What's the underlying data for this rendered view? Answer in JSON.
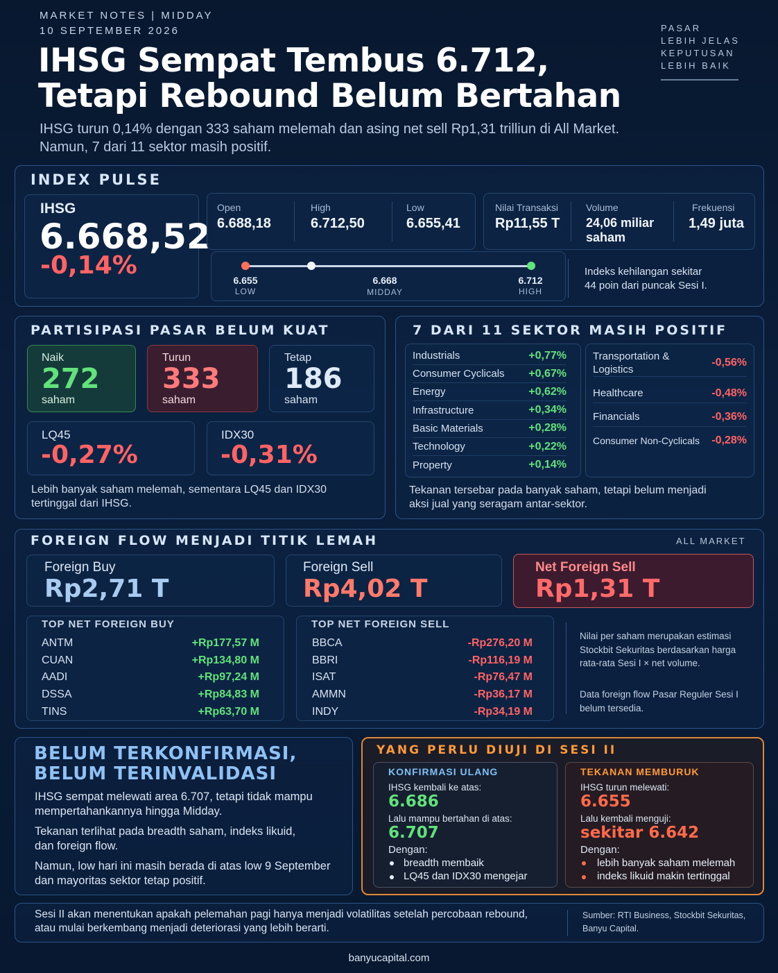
{
  "header": {
    "kicker": "MARKET NOTES | MIDDAY",
    "date": "10 SEPTEMBER 2026",
    "title_line1": "IHSG Sempat Tembus 6.712,",
    "title_line2": "Tetapi Rebound Belum Bertahan",
    "subtitle_line1": "IHSG turun 0,14% dengan 333 saham melemah dan asing net sell Rp1,31 trilliun di All Market.",
    "subtitle_line2": "Namun, 7 dari 11 sektor masih positif.",
    "tagline": [
      "PASAR",
      "LEBIH JELAS",
      "KEPUTUSAN",
      "LEBIH BAIK"
    ]
  },
  "index_pulse": {
    "title": "INDEX PULSE",
    "name": "IHSG",
    "value": "6.668,52",
    "change": "-0,14%",
    "stats": [
      {
        "label": "Open",
        "value": "6.688,18"
      },
      {
        "label": "High",
        "value": "6.712,50"
      },
      {
        "label": "Low",
        "value": "6.655,41"
      }
    ],
    "trade": [
      {
        "label": "Nilai Transaksi",
        "value": "Rp11,55 T"
      },
      {
        "label": "Volume",
        "value": "24,06 miliar saham"
      },
      {
        "label": "Frekuensi",
        "value": "1,49 juta"
      }
    ],
    "range": {
      "low_value": "6.655",
      "low_label": "LOW",
      "mid_value": "6.668",
      "mid_label": "MIDDAY",
      "high_value": "6.712",
      "high_label": "HIGH",
      "low_num": 6655.41,
      "mid_num": 6668.52,
      "high_num": 6712.5
    },
    "note_line1": "Indeks kehilangan sekitar",
    "note_line2": "44 poin dari puncak Sesi I."
  },
  "participation": {
    "title": "PARTISIPASI PASAR BELUM KUAT",
    "naik": {
      "label": "Naik",
      "value": "272",
      "unit": "saham"
    },
    "turun": {
      "label": "Turun",
      "value": "333",
      "unit": "saham"
    },
    "tetap": {
      "label": "Tetap",
      "value": "186",
      "unit": "saham"
    },
    "lq45": {
      "label": "LQ45",
      "value": "-0,27%"
    },
    "idx30": {
      "label": "IDX30",
      "value": "-0,31%"
    },
    "note_line1": "Lebih banyak saham melemah, sementara LQ45 dan IDX30",
    "note_line2": "tertinggal dari IHSG."
  },
  "sectors": {
    "title": "7 DARI 11 SEKTOR MASIH POSITIF",
    "positive": [
      {
        "name": "Industrials",
        "value": "+0,77%"
      },
      {
        "name": "Consumer Cyclicals",
        "value": "+0,67%"
      },
      {
        "name": "Energy",
        "value": "+0,62%"
      },
      {
        "name": "Infrastructure",
        "value": "+0,34%"
      },
      {
        "name": "Basic Materials",
        "value": "+0,28%"
      },
      {
        "name": "Technology",
        "value": "+0,22%"
      },
      {
        "name": "Property",
        "value": "+0,14%"
      }
    ],
    "negative": [
      {
        "name": "Transportation & Logistics",
        "value": "-0,56%"
      },
      {
        "name": "Healthcare",
        "value": "-0,48%"
      },
      {
        "name": "Financials",
        "value": "-0,36%"
      },
      {
        "name": "Consumer Non-Cyclicals",
        "value": "-0,28%"
      }
    ],
    "note_line1": "Tekanan tersebar pada banyak saham, tetapi belum menjadi",
    "note_line2": "aksi jual yang seragam antar-sektor."
  },
  "foreign": {
    "title": "FOREIGN FLOW MENJADI TITIK LEMAH",
    "scope": "ALL MARKET",
    "buy": {
      "label": "Foreign Buy",
      "value": "Rp2,71 T"
    },
    "sell": {
      "label": "Foreign Sell",
      "value": "Rp4,02 T"
    },
    "net": {
      "label": "Net Foreign Sell",
      "value": "Rp1,31 T"
    },
    "top_buy_title": "TOP NET FOREIGN BUY",
    "top_buy": [
      {
        "code": "ANTM",
        "value": "+Rp177,57 M"
      },
      {
        "code": "CUAN",
        "value": "+Rp134,80 M"
      },
      {
        "code": "AADI",
        "value": "+Rp97,24 M"
      },
      {
        "code": "DSSA",
        "value": "+Rp84,83 M"
      },
      {
        "code": "TINS",
        "value": "+Rp63,70 M"
      }
    ],
    "top_sell_title": "TOP NET FOREIGN SELL",
    "top_sell": [
      {
        "code": "BBCA",
        "value": "-Rp276,20 M"
      },
      {
        "code": "BBRI",
        "value": "-Rp116,19 M"
      },
      {
        "code": "ISAT",
        "value": "-Rp76,47 M"
      },
      {
        "code": "AMMN",
        "value": "-Rp36,17 M"
      },
      {
        "code": "INDY",
        "value": "-Rp34,19 M"
      }
    ],
    "note1": [
      "Nilai per saham merupakan estimasi",
      "Stockbit Sekuritas berdasarkan harga",
      "rata-rata Sesi I × net volume."
    ],
    "note2": [
      "Data foreign flow Pasar Reguler Sesi I",
      "belum tersedia."
    ]
  },
  "confirm": {
    "title_line1": "BELUM TERKONFIRMASI,",
    "title_line2": "BELUM TERINVALIDASI",
    "p1": [
      "IHSG sempat melewati area 6.707, tetapi tidak mampu",
      "mempertahankannya hingga Midday."
    ],
    "p2": [
      "Tekanan terlihat pada breadth saham, indeks likuid,",
      "dan foreign flow."
    ],
    "p3": [
      "Namun, low hari ini masih berada di atas low 9 September",
      "dan mayoritas sektor tetap positif."
    ]
  },
  "session2": {
    "title": "YANG PERLU DIUJI DI SESI II",
    "left": {
      "title": "KONFIRMASI ULANG",
      "l1": "IHSG kembali ke atas:",
      "v1": "6.686",
      "l2": "Lalu mampu bertahan di atas:",
      "v2": "6.707",
      "l3": "Dengan:",
      "bullets": [
        "breadth membaik",
        "LQ45 dan IDX30 mengejar"
      ]
    },
    "right": {
      "title": "TEKANAN MEMBURUK",
      "l1": "IHSG turun melewati:",
      "v1": "6.655",
      "l2": "Lalu kembali menguji:",
      "v2": "sekitar 6.642",
      "l3": "Dengan:",
      "bullets": [
        "lebih banyak saham melemah",
        "indeks likuid makin tertinggal"
      ]
    }
  },
  "footer": {
    "summary_line1": "Sesi II akan menentukan apakah pelemahan pagi hanya menjadi volatilitas setelah percobaan rebound,",
    "summary_line2": "atau mulai berkembang menjadi deteriorasi yang lebih berarti.",
    "source_line1": "Sumber: RTI Business, Stockbit Sekuritas,",
    "source_line2": "Banyu Capital.",
    "site": "banyucapital.com"
  },
  "colors": {
    "positive": "#62e27a",
    "negative": "#ff6363",
    "accent_orange": "#ff9a3a",
    "panel_border": "#2b5488"
  }
}
